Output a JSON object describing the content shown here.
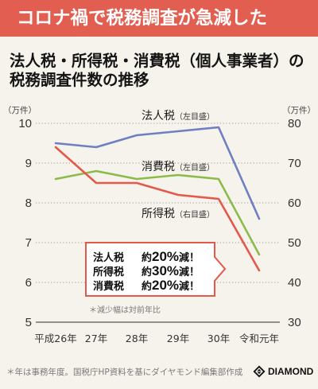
{
  "banner": {
    "title": "コロナ禍で税務調査が急減した",
    "color": "#e25e50"
  },
  "chart_data": {
    "type": "line",
    "title": [
      "法人税・所得税・消費税（個人事業者）の",
      "税務調査件数の推移"
    ],
    "categories": [
      "平成26年",
      "27年",
      "28年",
      "29年",
      "30年",
      "令和元年"
    ],
    "y_left": {
      "label": "（万件）",
      "range": [
        5,
        10
      ],
      "ticks": [
        10,
        9,
        8,
        7,
        6,
        5
      ]
    },
    "y_right": {
      "label": "（万件）",
      "range": [
        30,
        80
      ],
      "ticks": [
        80,
        70,
        60,
        50,
        40,
        30
      ]
    },
    "grid": true,
    "series": [
      {
        "name": "法人税",
        "axis_label": "（左目盛）",
        "axis": "left",
        "color": "#6e7fc2",
        "values": [
          9.5,
          9.4,
          9.7,
          9.8,
          9.9,
          7.6
        ]
      },
      {
        "name": "消費税",
        "axis_label": "（左目盛）",
        "axis": "left",
        "color": "#8dbb4a",
        "values": [
          8.6,
          8.8,
          8.6,
          8.7,
          8.6,
          6.7
        ]
      },
      {
        "name": "所得税",
        "axis_label": "（右目盛）",
        "axis": "right",
        "color": "#e3594b",
        "values": [
          74,
          65,
          65,
          62,
          61,
          43
        ]
      }
    ]
  },
  "callout": {
    "border_color": "#e3594b",
    "rows": [
      {
        "tax": "法人税",
        "prefix": "約",
        "pct": "20%",
        "suffix": "減！"
      },
      {
        "tax": "所得税",
        "prefix": "約",
        "pct": "30%",
        "suffix": "減！"
      },
      {
        "tax": "消費税",
        "prefix": "約",
        "pct": "20%",
        "suffix": "減！"
      }
    ],
    "note": "＊減少幅は対前年比"
  },
  "footer": {
    "source": "＊年は事務年度。国税庁HP資料を基にダイヤモンド編集部作成",
    "logo_text": "DIAMOND",
    "logo_icon": "diamond-logo-icon"
  }
}
